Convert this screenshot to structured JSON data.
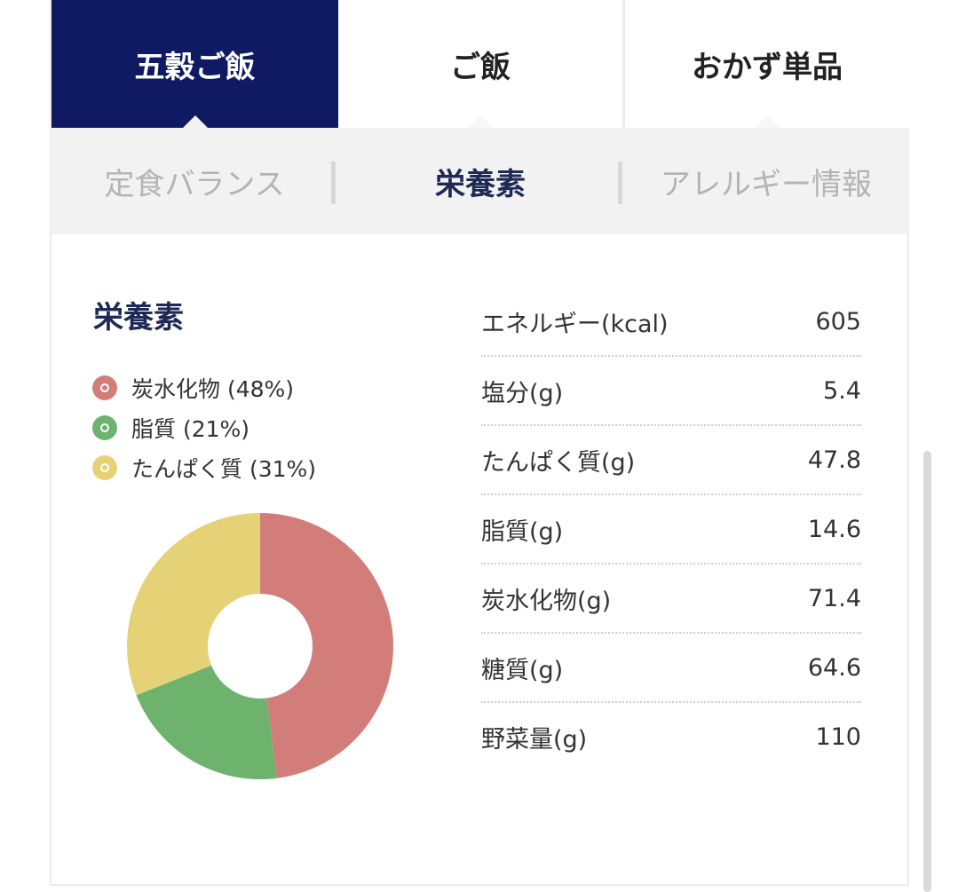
{
  "tabs": [
    {
      "label": "五穀ご飯",
      "active": true
    },
    {
      "label": "ご飯",
      "active": false
    },
    {
      "label": "おかず単品",
      "active": false
    }
  ],
  "subtabs": [
    {
      "label": "定食バランス",
      "active": false
    },
    {
      "label": "栄養素",
      "active": true
    },
    {
      "label": "アレルギー情報",
      "active": false
    }
  ],
  "section": {
    "title": "栄養素"
  },
  "legend": [
    {
      "label": "炭水化物 (48%)",
      "color": "#d37d7b"
    },
    {
      "label": "脂質 (21%)",
      "color": "#6db36d"
    },
    {
      "label": "たんぱく質 (31%)",
      "color": "#e6d276"
    }
  ],
  "chart_data": {
    "type": "pie",
    "categories": [
      "炭水化物",
      "脂質",
      "たんぱく質"
    ],
    "values": [
      48,
      21,
      31
    ],
    "colors": [
      "#d37d7b",
      "#6db36d",
      "#e6d276"
    ],
    "title": ""
  },
  "nutrients": [
    {
      "label": "エネルギー(kcal)",
      "value": "605"
    },
    {
      "label": "塩分(g)",
      "value": "5.4"
    },
    {
      "label": "たんぱく質(g)",
      "value": "47.8"
    },
    {
      "label": "脂質(g)",
      "value": "14.6"
    },
    {
      "label": "炭水化物(g)",
      "value": "71.4"
    },
    {
      "label": "糖質(g)",
      "value": "64.6"
    },
    {
      "label": "野菜量(g)",
      "value": "110"
    }
  ]
}
